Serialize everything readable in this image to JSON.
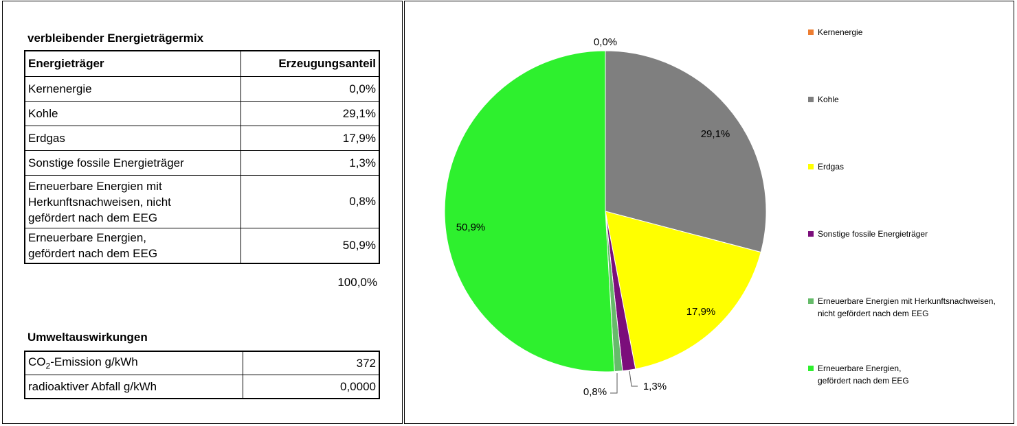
{
  "table": {
    "title": "verbleibender Energieträgermix",
    "header_col1": "Energieträger",
    "header_col2": "Erzeugungsanteil",
    "rows": [
      {
        "label": "Kernenergie",
        "value": "0,0%"
      },
      {
        "label": "Kohle",
        "value": "29,1%"
      },
      {
        "label": "Erdgas",
        "value": "17,9%"
      },
      {
        "label": "Sonstige fossile Energieträger",
        "value": "1,3%"
      },
      {
        "label_lines": [
          "Erneuerbare Energien mit",
          "Herkunftsnachweisen, nicht",
          "gefördert nach dem EEG"
        ],
        "value": "0,8%"
      },
      {
        "label_lines": [
          "Erneuerbare Energien,",
          "gefördert nach dem EEG"
        ],
        "value": "50,9%"
      }
    ],
    "total": "100,0%"
  },
  "environment": {
    "title": "Umweltauswirkungen",
    "co2_label_prefix": "CO",
    "co2_label_sub": "2",
    "co2_label_suffix": "-Emission g/kWh",
    "co2_value": "372",
    "waste_label": "radioaktiver Abfall g/kWh",
    "waste_value": "0,0000"
  },
  "chart_data": {
    "type": "pie",
    "slices": [
      {
        "name": "Kernenergie",
        "value": 0.0,
        "label": "0,0%",
        "color": "#ed7d31"
      },
      {
        "name": "Kohle",
        "value": 29.1,
        "label": "29,1%",
        "color": "#7f7f7f"
      },
      {
        "name": "Erdgas",
        "value": 17.9,
        "label": "17,9%",
        "color": "#ffff00"
      },
      {
        "name": "Sonstige fossile Energieträger",
        "value": 1.3,
        "label": "1,3%",
        "color": "#7b0e7b"
      },
      {
        "name": "Erneuerbare Energien mit Herkunftsnachweisen, nicht gefördert nach dem EEG",
        "value": 0.8,
        "label": "0,8%",
        "color": "#66bb6a"
      },
      {
        "name": "Erneuerbare Energien, gefördert nach dem EEG",
        "value": 50.9,
        "label": "50,9%",
        "color": "#2ef02e"
      }
    ],
    "legend_position": "right"
  }
}
